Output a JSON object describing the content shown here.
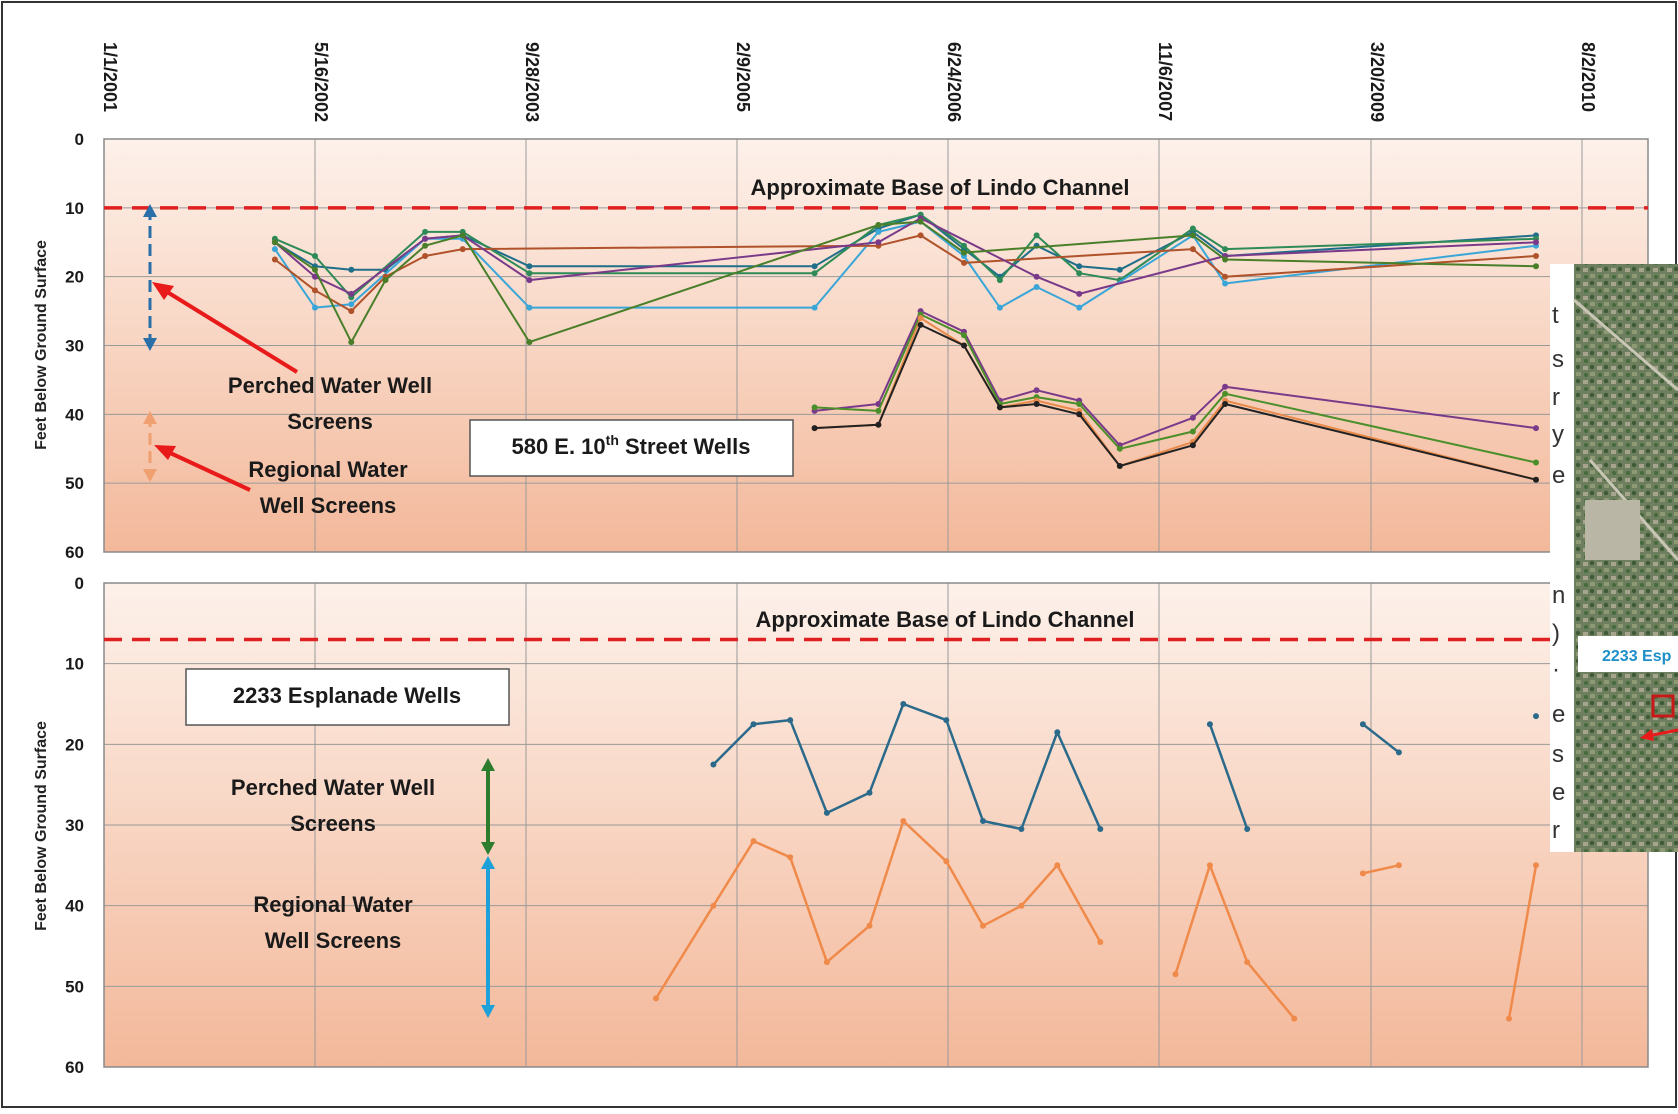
{
  "colors": {
    "plot_bg_top": "#fdf1ea",
    "plot_bg_bottom": "#f3b89a",
    "grid": "#9a9a9a",
    "channel_line": "#e02020",
    "annotation_arrow": "#e81a1a",
    "perched_arrow_top": "#2a6fa8",
    "regional_arrow_top": "#f0a070",
    "perched_arrow_bottom": "#2e7d2e",
    "regional_arrow_bottom": "#1da1d8",
    "esplanade_perched": "#2b6a8a",
    "esplanade_regional": "#ef8a4a"
  },
  "x_axis": {
    "tick_labels": [
      "1/1/2001",
      "5/16/2002",
      "9/28/2003",
      "2/9/2005",
      "6/24/2006",
      "11/6/2007",
      "3/20/2009",
      "8/2/2010"
    ]
  },
  "top_panel": {
    "y_label": "Feet Below Ground Surface",
    "y_ticks": [
      "0",
      "10",
      "20",
      "30",
      "40",
      "50",
      "60"
    ],
    "channel_label": "Approximate Base of Lindo Channel",
    "box_label_main": "580 E. 10",
    "box_label_sup": "th",
    "box_label_rest": " Street Wells",
    "perched_label_line1": "Perched Water Well",
    "perched_label_line2": "Screens",
    "regional_label_line1": "Regional Water",
    "regional_label_line2": "Well Screens"
  },
  "bottom_panel": {
    "y_label": "Feet Below Ground Surface",
    "y_ticks": [
      "0",
      "10",
      "20",
      "30",
      "40",
      "50",
      "60"
    ],
    "channel_label": "Approximate Base of Lindo Channel",
    "box_label": "2233 Esplanade Wells",
    "perched_label_line1": "Perched Water Well",
    "perched_label_line2": "Screens",
    "regional_label_line1": "Regional Water",
    "regional_label_line2": "Well Screens"
  },
  "inset_map": {
    "label": "2233 Esp",
    "side_fragments": [
      "t",
      "s",
      "r",
      "y",
      "e",
      "n",
      ")",
      "·",
      "e",
      "s",
      "e",
      "r"
    ]
  },
  "chart_data": [
    {
      "type": "line",
      "title": "580 E. 10th Street Wells",
      "xlabel": "",
      "ylabel": "Feet Below Ground Surface",
      "ylim": [
        0,
        60
      ],
      "y_inverted": true,
      "x_range": [
        "2001-01-01",
        "2010-08-02"
      ],
      "grid": true,
      "reference_lines": [
        {
          "label": "Approximate Base of Lindo Channel",
          "y": 10
        }
      ],
      "annotations": [
        {
          "label": "Perched Water Well Screens",
          "y_range": [
            10,
            30
          ]
        },
        {
          "label": "Regional Water Well Screens",
          "y_range": [
            40,
            50
          ]
        }
      ],
      "series": [
        {
          "color": "#1f6f8b",
          "points": [
            [
              "2002-02-10",
              15
            ],
            [
              "2002-05-16",
              18.5
            ],
            [
              "2002-08-10",
              19
            ],
            [
              "2002-10-30",
              19
            ],
            [
              "2003-02-01",
              14.5
            ],
            [
              "2003-05-01",
              14
            ],
            [
              "2003-10-06",
              18.5
            ],
            [
              "2005-08-12",
              18.5
            ],
            [
              "2006-01-10",
              13
            ],
            [
              "2006-04-20",
              11
            ],
            [
              "2006-08-01",
              16
            ],
            [
              "2006-10-25",
              20
            ],
            [
              "2007-01-20",
              15.5
            ],
            [
              "2007-05-01",
              18.5
            ],
            [
              "2007-08-05",
              19
            ],
            [
              "2008-01-25",
              13.5
            ],
            [
              "2008-04-10",
              17
            ],
            [
              "2010-04-15",
              14
            ]
          ]
        },
        {
          "color": "#2e8b57",
          "points": [
            [
              "2002-02-10",
              14.5
            ],
            [
              "2002-05-16",
              17
            ],
            [
              "2002-08-10",
              23
            ],
            [
              "2003-02-01",
              13.5
            ],
            [
              "2003-05-01",
              13.5
            ],
            [
              "2003-10-06",
              19.5
            ],
            [
              "2005-08-12",
              19.5
            ],
            [
              "2006-01-10",
              12.5
            ],
            [
              "2006-04-20",
              11
            ],
            [
              "2006-08-01",
              15.5
            ],
            [
              "2006-10-25",
              20.5
            ],
            [
              "2007-01-20",
              14
            ],
            [
              "2007-05-01",
              19.5
            ],
            [
              "2007-08-05",
              20.5
            ],
            [
              "2008-01-25",
              13
            ],
            [
              "2008-04-10",
              16
            ],
            [
              "2010-04-15",
              14.5
            ]
          ]
        },
        {
          "color": "#3aa6d8",
          "points": [
            [
              "2002-02-10",
              16
            ],
            [
              "2002-05-16",
              24.5
            ],
            [
              "2002-08-10",
              24
            ],
            [
              "2003-02-01",
              14.5
            ],
            [
              "2003-05-01",
              14.5
            ],
            [
              "2003-10-06",
              24.5
            ],
            [
              "2005-08-12",
              24.5
            ],
            [
              "2006-01-10",
              13.5
            ],
            [
              "2006-04-20",
              12
            ],
            [
              "2006-08-01",
              17
            ],
            [
              "2006-10-25",
              24.5
            ],
            [
              "2007-01-20",
              21.5
            ],
            [
              "2007-05-01",
              24.5
            ],
            [
              "2008-01-25",
              14
            ],
            [
              "2008-04-10",
              21
            ],
            [
              "2010-04-15",
              15.5
            ]
          ]
        },
        {
          "color": "#b0522a",
          "points": [
            [
              "2002-02-10",
              17.5
            ],
            [
              "2002-05-16",
              22
            ],
            [
              "2002-08-10",
              25
            ],
            [
              "2002-10-30",
              20
            ],
            [
              "2003-02-01",
              17
            ],
            [
              "2003-05-01",
              16
            ],
            [
              "2006-01-10",
              15.5
            ],
            [
              "2006-04-20",
              14
            ],
            [
              "2006-08-01",
              18
            ],
            [
              "2008-01-25",
              16
            ],
            [
              "2008-04-10",
              20
            ],
            [
              "2010-04-15",
              17
            ]
          ]
        },
        {
          "color": "#7a3a8a",
          "points": [
            [
              "2002-02-10",
              15
            ],
            [
              "2002-05-16",
              20
            ],
            [
              "2002-08-10",
              22.5
            ],
            [
              "2003-02-01",
              14.5
            ],
            [
              "2003-05-01",
              14
            ],
            [
              "2003-10-06",
              20.5
            ],
            [
              "2006-01-10",
              15
            ],
            [
              "2006-04-20",
              11.5
            ],
            [
              "2007-01-20",
              20
            ],
            [
              "2007-05-01",
              22.5
            ],
            [
              "2008-04-10",
              17
            ],
            [
              "2010-04-15",
              15
            ]
          ]
        },
        {
          "color": "#4a7f2a",
          "points": [
            [
              "2002-02-10",
              15
            ],
            [
              "2002-05-16",
              19
            ],
            [
              "2002-08-10",
              29.5
            ],
            [
              "2002-10-30",
              20.5
            ],
            [
              "2003-02-01",
              15.5
            ],
            [
              "2003-05-01",
              14
            ],
            [
              "2003-10-06",
              29.5
            ],
            [
              "2006-01-10",
              12.5
            ],
            [
              "2006-04-20",
              12
            ],
            [
              "2006-08-01",
              16.5
            ],
            [
              "2008-01-25",
              14
            ],
            [
              "2008-04-10",
              17.5
            ],
            [
              "2010-04-15",
              18.5
            ]
          ]
        },
        {
          "color": "#7a3a8a",
          "points": [
            [
              "2005-08-12",
              39.5
            ],
            [
              "2006-01-10",
              38.5
            ],
            [
              "2006-04-20",
              25
            ],
            [
              "2006-08-01",
              28
            ],
            [
              "2006-10-25",
              38
            ],
            [
              "2007-01-20",
              36.5
            ],
            [
              "2007-05-01",
              38
            ],
            [
              "2007-08-05",
              44.5
            ],
            [
              "2008-01-25",
              40.5
            ],
            [
              "2008-04-10",
              36
            ],
            [
              "2010-04-15",
              42
            ]
          ]
        },
        {
          "color": "#4a8f2a",
          "points": [
            [
              "2005-08-12",
              39
            ],
            [
              "2006-01-10",
              39.5
            ],
            [
              "2006-04-20",
              25.5
            ],
            [
              "2006-08-01",
              28.5
            ],
            [
              "2006-10-25",
              38.5
            ],
            [
              "2007-01-20",
              37.5
            ],
            [
              "2007-05-01",
              38.5
            ],
            [
              "2007-08-05",
              45
            ],
            [
              "2008-01-25",
              42.5
            ],
            [
              "2008-04-10",
              37
            ],
            [
              "2010-04-15",
              47
            ]
          ]
        },
        {
          "color": "#e88a4a",
          "points": [
            [
              "2005-08-12",
              42
            ],
            [
              "2006-01-10",
              41.5
            ],
            [
              "2006-04-20",
              26
            ],
            [
              "2006-08-01",
              30
            ],
            [
              "2006-10-25",
              39
            ],
            [
              "2007-01-20",
              38
            ],
            [
              "2007-05-01",
              39.5
            ],
            [
              "2007-08-05",
              47.5
            ],
            [
              "2008-01-25",
              44
            ],
            [
              "2008-04-10",
              38
            ],
            [
              "2010-04-15",
              49.5
            ]
          ]
        },
        {
          "color": "#222222",
          "points": [
            [
              "2005-08-12",
              42
            ],
            [
              "2006-01-10",
              41.5
            ],
            [
              "2006-04-20",
              27
            ],
            [
              "2006-08-01",
              30
            ],
            [
              "2006-10-25",
              39
            ],
            [
              "2007-01-20",
              38.5
            ],
            [
              "2007-05-01",
              40
            ],
            [
              "2007-08-05",
              47.5
            ],
            [
              "2008-01-25",
              44.5
            ],
            [
              "2008-04-10",
              38.5
            ],
            [
              "2010-04-15",
              49.5
            ]
          ]
        }
      ]
    },
    {
      "type": "line",
      "title": "2233 Esplanade Wells",
      "xlabel": "",
      "ylabel": "Feet Below Ground Surface",
      "ylim": [
        0,
        60
      ],
      "y_inverted": true,
      "x_range": [
        "2001-01-01",
        "2010-08-02"
      ],
      "grid": true,
      "reference_lines": [
        {
          "label": "Approximate Base of Lindo Channel",
          "y": 7
        }
      ],
      "annotations": [
        {
          "label": "Perched Water Well Screens",
          "y_range": [
            22,
            34
          ]
        },
        {
          "label": "Regional Water Well Screens",
          "y_range": [
            34,
            54
          ]
        }
      ],
      "series": [
        {
          "color": "#2b6a8a",
          "segments": [
            [
              [
                "2004-12-15",
                22.5
              ],
              [
                "2005-03-20",
                17.5
              ],
              [
                "2005-06-15",
                17
              ],
              [
                "2005-09-10",
                28.5
              ],
              [
                "2005-12-20",
                26
              ],
              [
                "2006-03-10",
                15
              ],
              [
                "2006-06-20",
                17
              ],
              [
                "2006-09-15",
                29.5
              ],
              [
                "2006-12-15",
                30.5
              ],
              [
                "2007-03-10",
                18.5
              ],
              [
                "2007-06-20",
                30.5
              ]
            ],
            [
              [
                "2008-03-05",
                17.5
              ],
              [
                "2008-06-01",
                30.5
              ]
            ],
            [
              [
                "2009-03-01",
                17.5
              ],
              [
                "2009-05-25",
                21
              ]
            ],
            [
              [
                "2010-04-15",
                16.5
              ]
            ]
          ]
        },
        {
          "color": "#ef8a4a",
          "segments": [
            [
              [
                "2004-08-01",
                51.5
              ],
              [
                "2004-12-15",
                40
              ],
              [
                "2005-03-20",
                32
              ],
              [
                "2005-06-15",
                34
              ],
              [
                "2005-09-10",
                47
              ],
              [
                "2005-12-20",
                42.5
              ],
              [
                "2006-03-10",
                29.5
              ],
              [
                "2006-06-20",
                34.5
              ],
              [
                "2006-09-15",
                42.5
              ],
              [
                "2006-12-15",
                40
              ],
              [
                "2007-03-10",
                35
              ],
              [
                "2007-06-20",
                44.5
              ]
            ],
            [
              [
                "2007-12-15",
                48.5
              ],
              [
                "2008-03-05",
                35
              ],
              [
                "2008-06-01",
                47
              ],
              [
                "2008-09-20",
                54
              ]
            ],
            [
              [
                "2009-03-01",
                36
              ],
              [
                "2009-05-25",
                35
              ]
            ],
            [
              [
                "2010-02-10",
                54
              ],
              [
                "2010-04-15",
                35
              ]
            ]
          ]
        }
      ]
    }
  ]
}
